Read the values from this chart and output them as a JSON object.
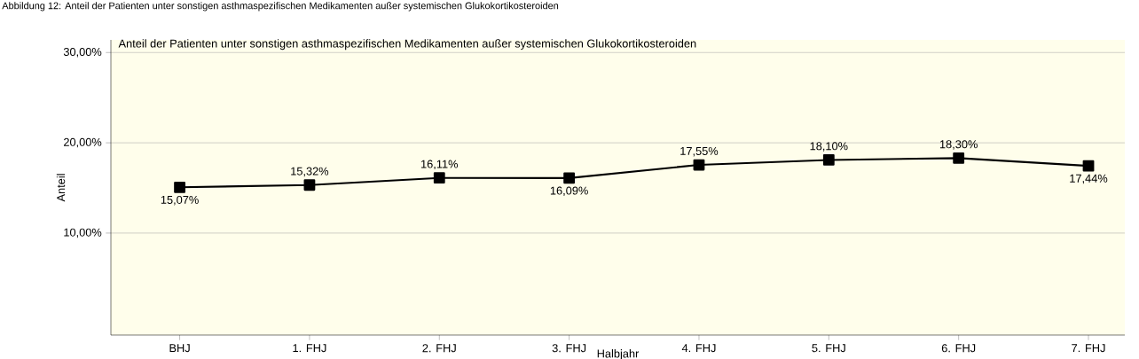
{
  "chart_data": {
    "type": "line",
    "title": "Anteil der Patienten unter sonstigen asthmaspezifischen Medikamenten außer systemischen Glukokortikosteroiden",
    "annotations": [
      "Abbildung 12: Anteil der Patienten unter sonstigen asthmaspezifischen Medikamenten außer systemischen Glukokortikosteroiden"
    ],
    "xlabel": "Halbjahr",
    "ylabel": "Anteil",
    "categories": [
      "BHJ",
      "1. FHJ",
      "2. FHJ",
      "3. FHJ",
      "4. FHJ",
      "5. FHJ",
      "6. FHJ",
      "7. FHJ"
    ],
    "values": [
      15.07,
      15.32,
      16.11,
      16.09,
      17.55,
      18.1,
      18.3,
      17.44
    ],
    "value_labels": [
      "15,07%",
      "15,32%",
      "16,11%",
      "16,09%",
      "17,55%",
      "18,10%",
      "18,30%",
      "17,44%"
    ],
    "color": "#000000",
    "marker": "square",
    "line_style": "solid",
    "grid": "y",
    "ylim": [
      -1.3,
      31.4
    ],
    "yticks": [
      {
        "value": 10,
        "label": "10,00%"
      },
      {
        "value": 20,
        "label": "20,00%"
      },
      {
        "value": 30,
        "label": "30,00%"
      }
    ]
  }
}
